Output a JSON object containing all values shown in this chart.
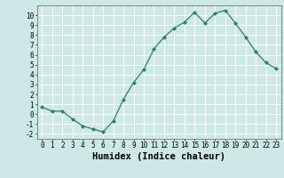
{
  "x": [
    0,
    1,
    2,
    3,
    4,
    5,
    6,
    7,
    8,
    9,
    10,
    11,
    12,
    13,
    14,
    15,
    16,
    17,
    18,
    19,
    20,
    21,
    22,
    23
  ],
  "y": [
    0.7,
    0.3,
    0.3,
    -0.5,
    -1.2,
    -1.5,
    -1.8,
    -0.7,
    1.5,
    3.2,
    4.5,
    6.6,
    7.8,
    8.7,
    9.3,
    10.3,
    9.2,
    10.2,
    10.5,
    9.2,
    7.8,
    6.3,
    5.2,
    4.6
  ],
  "line_color": "#2e7d6e",
  "marker": "D",
  "marker_size": 2,
  "bg_color": "#cce9e8",
  "grid_color": "#ffffff",
  "xlabel": "Humidex (Indice chaleur)",
  "ylim": [
    -2.5,
    11.0
  ],
  "xlim": [
    -0.5,
    23.5
  ],
  "yticks": [
    -2,
    -1,
    0,
    1,
    2,
    3,
    4,
    5,
    6,
    7,
    8,
    9,
    10
  ],
  "xticks": [
    0,
    1,
    2,
    3,
    4,
    5,
    6,
    7,
    8,
    9,
    10,
    11,
    12,
    13,
    14,
    15,
    16,
    17,
    18,
    19,
    20,
    21,
    22,
    23
  ],
  "tick_fontsize": 5.5,
  "label_fontsize": 7.5
}
